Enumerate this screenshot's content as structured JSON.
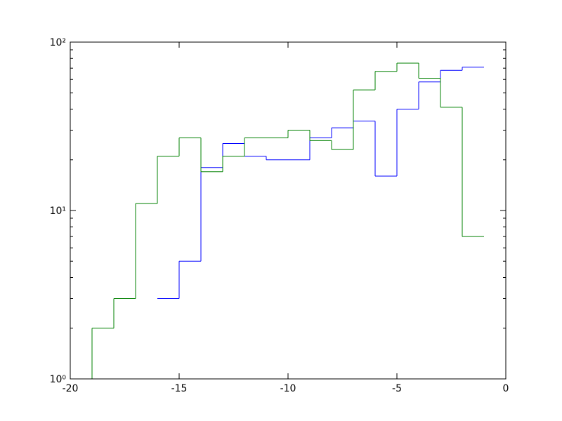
{
  "chart_data": {
    "type": "step-histogram",
    "bins": [
      -19,
      -18,
      -17,
      -16,
      -15,
      -14,
      -13,
      -12,
      -11,
      -10,
      -9,
      -8,
      -7,
      -6,
      -5,
      -4,
      -3,
      -2,
      -1
    ],
    "series": [
      {
        "color": "#0000ff",
        "values": [
          null,
          null,
          null,
          3,
          5,
          18,
          25,
          21,
          20,
          20,
          27,
          31,
          34,
          16,
          40,
          58,
          68,
          71
        ]
      },
      {
        "color": "#008000",
        "values": [
          2,
          3,
          11,
          21,
          27,
          17,
          21,
          27,
          27,
          30,
          26,
          23,
          52,
          67,
          75,
          61,
          41,
          7
        ]
      }
    ],
    "xlim": [
      -20,
      0
    ],
    "xticks": [
      -20,
      -15,
      -10,
      -5,
      0
    ],
    "ylim": [
      1,
      100
    ],
    "log_y": true,
    "yticks": [
      {
        "value": 1,
        "label": "10⁰"
      },
      {
        "value": 10,
        "label": "10¹"
      },
      {
        "value": 100,
        "label": "10²"
      }
    ]
  }
}
